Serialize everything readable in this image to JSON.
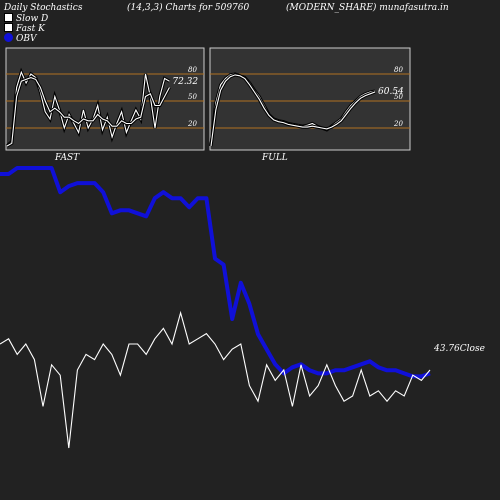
{
  "header": {
    "left": "Daily Stochastics",
    "middle": "(14,3,3) Charts for 509760",
    "right": "(MODERN_SHARE) munafasutra.in"
  },
  "legend": [
    "Slow D",
    "Fast K",
    "OBV"
  ],
  "colors": {
    "obv": "#1010d8",
    "price": "#ffffff",
    "level": "#b07020",
    "panel": "#333333",
    "background": "#222222"
  },
  "chart_data": [
    {
      "type": "line",
      "caption": "FAST",
      "ylim": [
        0,
        100
      ],
      "levels": [
        80,
        50,
        20
      ],
      "last_label": "72.32",
      "series": [
        {
          "name": "Fast K",
          "values": [
            0,
            5,
            65,
            82,
            70,
            80,
            76,
            60,
            38,
            30,
            55,
            40,
            20,
            35,
            25,
            15,
            40,
            20,
            30,
            45,
            18,
            32,
            10,
            25,
            38,
            15,
            28,
            40,
            30,
            80,
            55,
            20,
            55,
            75,
            72
          ]
        },
        {
          "name": "Slow D",
          "values": [
            0,
            3,
            55,
            72,
            74,
            76,
            74,
            65,
            50,
            38,
            42,
            38,
            32,
            32,
            28,
            25,
            30,
            28,
            28,
            35,
            30,
            28,
            22,
            22,
            28,
            25,
            25,
            30,
            32,
            55,
            58,
            45,
            45,
            55,
            65
          ]
        }
      ]
    },
    {
      "type": "line",
      "caption": "FULL",
      "ylim": [
        0,
        100
      ],
      "levels": [
        80,
        50,
        20
      ],
      "last_label": "60.54",
      "series": [
        {
          "name": "Fast K",
          "values": [
            0,
            48,
            68,
            75,
            79,
            80,
            78,
            76,
            70,
            62,
            55,
            45,
            35,
            30,
            28,
            27,
            25,
            24,
            23,
            22,
            23,
            25,
            22,
            20,
            18,
            22,
            26,
            30,
            38,
            45,
            50,
            55,
            58,
            60,
            61
          ]
        },
        {
          "name": "Slow D",
          "values": [
            0,
            40,
            62,
            72,
            77,
            79,
            78,
            75,
            68,
            60,
            52,
            42,
            34,
            29,
            27,
            26,
            24,
            23,
            22,
            21,
            21,
            22,
            21,
            20,
            19,
            21,
            24,
            28,
            35,
            42,
            48,
            53,
            56,
            58,
            60
          ]
        }
      ]
    },
    {
      "type": "line",
      "last_label": "43.76Close",
      "series": [
        {
          "name": "OBV",
          "values": [
            98,
            98,
            100,
            100,
            100,
            100,
            100,
            92,
            94,
            95,
            95,
            95,
            92,
            85,
            86,
            86,
            85,
            84,
            90,
            92,
            90,
            90,
            87,
            90,
            90,
            70,
            68,
            50,
            62,
            55,
            45,
            40,
            35,
            32,
            34,
            35,
            33,
            32,
            32,
            33,
            33,
            34,
            35,
            36,
            34,
            33,
            33,
            32,
            31,
            31,
            32
          ]
        },
        {
          "name": "Close",
          "values": [
            30,
            31,
            28,
            30,
            27,
            18,
            26,
            24,
            10,
            25,
            28,
            27,
            30,
            28,
            24,
            30,
            30,
            28,
            31,
            33,
            30,
            36,
            30,
            31,
            32,
            30,
            27,
            29,
            30,
            22,
            19,
            26,
            23,
            25,
            18,
            26,
            20,
            22,
            26,
            22,
            19,
            20,
            25,
            20,
            21,
            19,
            21,
            20,
            24,
            23,
            25
          ]
        }
      ]
    }
  ]
}
